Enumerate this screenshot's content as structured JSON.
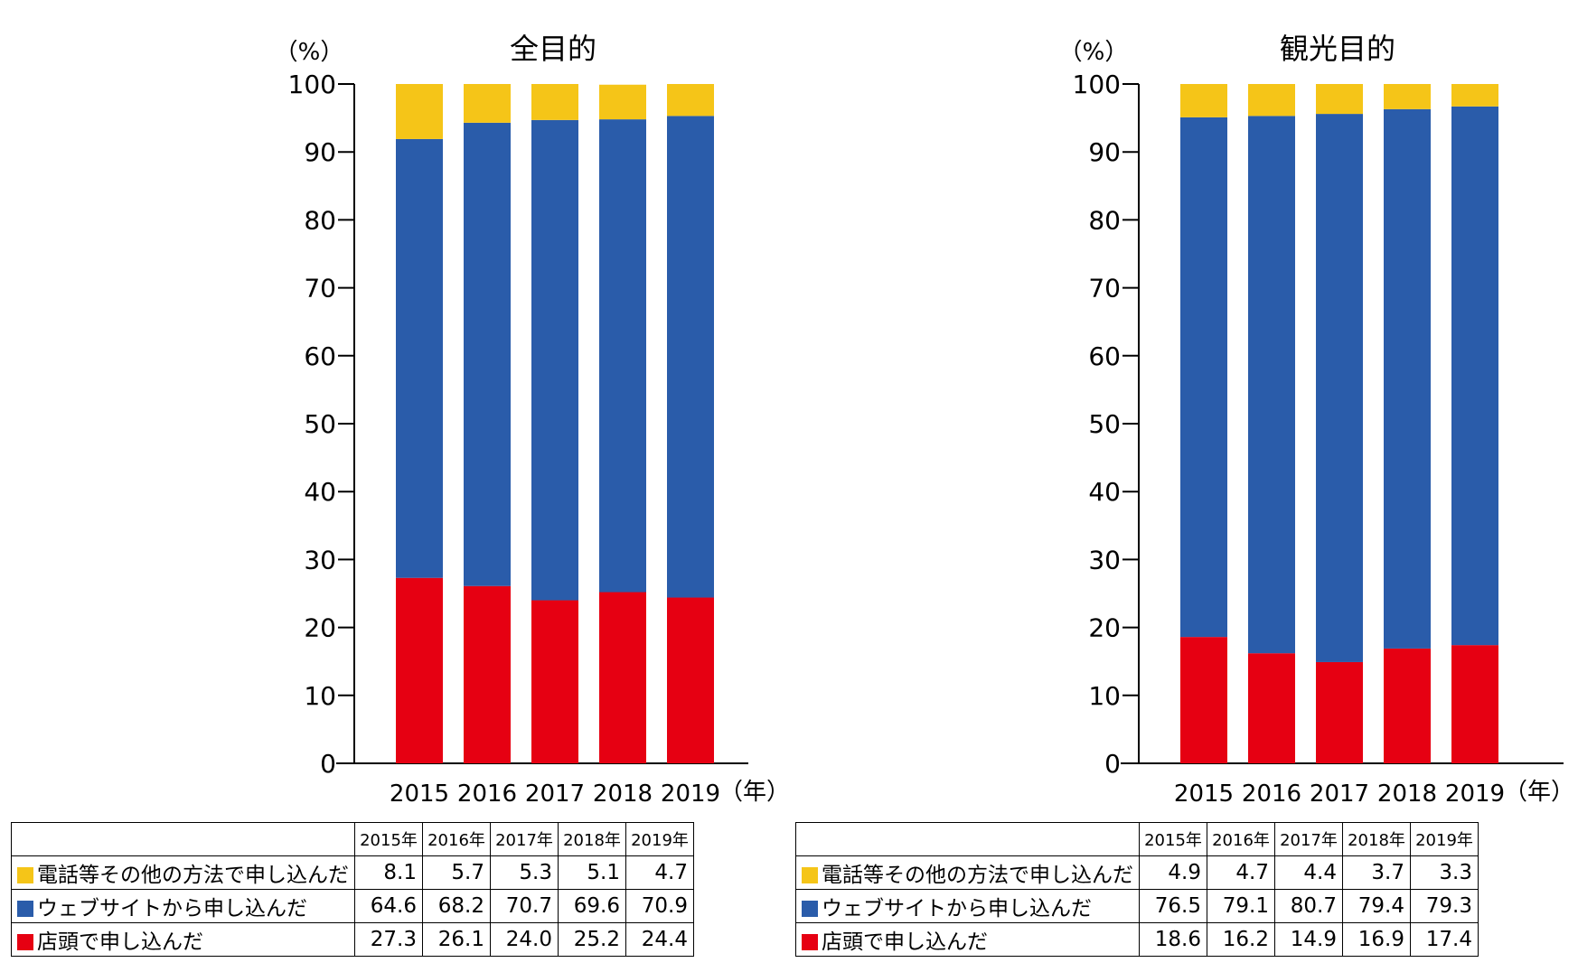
{
  "chart_data": [
    {
      "type": "bar",
      "stacked": true,
      "title": "全目的",
      "ylabel": "（%）",
      "xlabel": "（年）",
      "ylim": [
        0,
        100
      ],
      "yticks": [
        0,
        10,
        20,
        30,
        40,
        50,
        60,
        70,
        80,
        90,
        100
      ],
      "categories": [
        "2015",
        "2016",
        "2017",
        "2018",
        "2019"
      ],
      "series": [
        {
          "name": "店頭で申し込んだ",
          "color": "#e60012",
          "values": [
            27.3,
            26.1,
            24.0,
            25.2,
            24.4
          ]
        },
        {
          "name": "ウェブサイトから申し込んだ",
          "color": "#2a5caa",
          "values": [
            64.6,
            68.2,
            70.7,
            69.6,
            70.9
          ]
        },
        {
          "name": "電話等その他の方法で申し込んだ",
          "color": "#f5c518",
          "values": [
            8.1,
            5.7,
            5.3,
            5.1,
            4.7
          ]
        }
      ],
      "table": {
        "columns": [
          "2015年",
          "2016年",
          "2017年",
          "2018年",
          "2019年"
        ],
        "rows": [
          {
            "label": "電話等その他の方法で申し込んだ",
            "color": "#f5c518",
            "values": [
              "8.1",
              "5.7",
              "5.3",
              "5.1",
              "4.7"
            ]
          },
          {
            "label": "ウェブサイトから申し込んだ",
            "color": "#2a5caa",
            "values": [
              "64.6",
              "68.2",
              "70.7",
              "69.6",
              "70.9"
            ]
          },
          {
            "label": "店頭で申し込んだ",
            "color": "#e60012",
            "values": [
              "27.3",
              "26.1",
              "24.0",
              "25.2",
              "24.4"
            ]
          }
        ]
      }
    },
    {
      "type": "bar",
      "stacked": true,
      "title": "観光目的",
      "ylabel": "（%）",
      "xlabel": "（年）",
      "ylim": [
        0,
        100
      ],
      "yticks": [
        0,
        10,
        20,
        30,
        40,
        50,
        60,
        70,
        80,
        90,
        100
      ],
      "categories": [
        "2015",
        "2016",
        "2017",
        "2018",
        "2019"
      ],
      "series": [
        {
          "name": "店頭で申し込んだ",
          "color": "#e60012",
          "values": [
            18.6,
            16.2,
            14.9,
            16.9,
            17.4
          ]
        },
        {
          "name": "ウェブサイトから申し込んだ",
          "color": "#2a5caa",
          "values": [
            76.5,
            79.1,
            80.7,
            79.4,
            79.3
          ]
        },
        {
          "name": "電話等その他の方法で申し込んだ",
          "color": "#f5c518",
          "values": [
            4.9,
            4.7,
            4.4,
            3.7,
            3.3
          ]
        }
      ],
      "table": {
        "columns": [
          "2015年",
          "2016年",
          "2017年",
          "2018年",
          "2019年"
        ],
        "rows": [
          {
            "label": "電話等その他の方法で申し込んだ",
            "color": "#f5c518",
            "values": [
              "4.9",
              "4.7",
              "4.4",
              "3.7",
              "3.3"
            ]
          },
          {
            "label": "ウェブサイトから申し込んだ",
            "color": "#2a5caa",
            "values": [
              "76.5",
              "79.1",
              "80.7",
              "79.4",
              "79.3"
            ]
          },
          {
            "label": "店頭で申し込んだ",
            "color": "#e60012",
            "values": [
              "18.6",
              "16.2",
              "14.9",
              "16.9",
              "17.4"
            ]
          }
        ]
      }
    }
  ]
}
